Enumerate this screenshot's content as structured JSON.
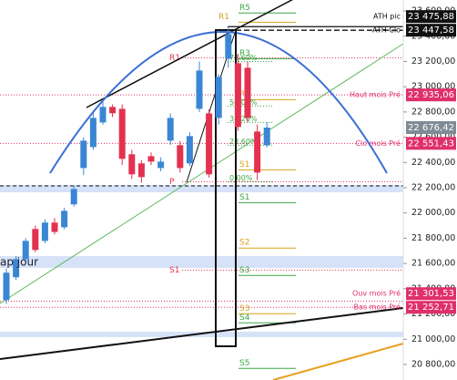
{
  "chart_data": {
    "type": "candlestick",
    "categories": [
      null,
      null,
      null,
      null,
      null,
      null,
      null,
      null,
      null,
      null,
      null,
      null,
      null,
      null,
      null,
      null,
      null,
      null,
      null,
      null,
      null,
      null,
      null,
      null,
      null,
      null,
      null,
      null
    ],
    "open": [
      21310,
      21491,
      21635,
      21873,
      21779,
      21924,
      21887,
      22068,
      22356,
      22522,
      22717,
      22840,
      22825,
      22465,
      22393,
      22450,
      22356,
      22573,
      22537,
      22393,
      22825,
      22789,
      22753,
      23222,
      23186,
      23150,
      22645,
      22537
    ],
    "high": [
      21560,
      21660,
      21800,
      21900,
      21950,
      21960,
      22040,
      22220,
      22600,
      22790,
      22880,
      22860,
      22860,
      22500,
      22420,
      22480,
      22440,
      22790,
      22570,
      22640,
      23200,
      22820,
      23100,
      23475.88,
      23260,
      23200,
      22700,
      22720
    ],
    "low": [
      21280,
      21470,
      21610,
      21690,
      21760,
      21830,
      21870,
      22050,
      22300,
      22500,
      22700,
      22760,
      22380,
      22270,
      22240,
      22380,
      22330,
      22540,
      22320,
      22370,
      22800,
      22280,
      22700,
      23150,
      22650,
      22720,
      22260,
      22520
    ],
    "close": [
      21527,
      21635,
      21779,
      21707,
      21924,
      21850,
      22017,
      22190,
      22573,
      22753,
      22840,
      22790,
      22429,
      22306,
      22284,
      22407,
      22407,
      22753,
      22356,
      22609,
      23128,
      22306,
      23078,
      23417,
      22681,
      22753,
      22320,
      22676.42
    ],
    "up_color": "#3a86d4",
    "down_color": "#e3324f",
    "last_price_label": "22 676,42",
    "last_price_color": "#7f8c97",
    "ylim": [
      20677,
      23687
    ],
    "yticks": [
      {
        "value": 20800,
        "label": "20 800,00"
      },
      {
        "value": 21000,
        "label": "21 000,00"
      },
      {
        "value": 21200,
        "label": "21 200,00"
      },
      {
        "value": 21400,
        "label": "21 400,00"
      },
      {
        "value": 21600,
        "label": "21 600,00"
      },
      {
        "value": 21800,
        "label": "21 800,00"
      },
      {
        "value": 22000,
        "label": "22 000,00"
      },
      {
        "value": 22200,
        "label": "22 200,00"
      },
      {
        "value": 22400,
        "label": "22 400,00"
      },
      {
        "value": 22600,
        "label": "22 600,00"
      },
      {
        "value": 22800,
        "label": "22 800,00"
      },
      {
        "value": 23000,
        "label": "23 000,00"
      },
      {
        "value": 23200,
        "label": "23 200,00"
      },
      {
        "value": 23400,
        "label": "23 400,00"
      },
      {
        "value": 23600,
        "label": "23 600,00"
      }
    ],
    "grid": false,
    "levels": [
      {
        "name": "ATH pic",
        "value": 23475.88,
        "value_label": "23 475,88",
        "color": "#111111",
        "style": "solid"
      },
      {
        "name": "ATH Clo",
        "value": 23447.58,
        "value_label": "23 447,58",
        "color": "#111111",
        "style": "dashed"
      },
      {
        "name": "Haut mois Pré",
        "value": 22935.06,
        "value_label": "22 935,06",
        "color": "#e0306a",
        "style": "dotted"
      },
      {
        "name": "Clo mois Pré",
        "value": 22551.43,
        "value_label": "22 551,43",
        "color": "#e0306a",
        "style": "dotted"
      },
      {
        "name": "Ouv mois Pré",
        "value": 21301.53,
        "value_label": "21 301,53",
        "color": "#e0306a",
        "style": "dotted"
      },
      {
        "name": "Bas mois Pré",
        "value": 21252.71,
        "value_label": "21 252,71",
        "color": "#e0306a",
        "style": "dotted"
      }
    ],
    "pivots": [
      {
        "name": "R5",
        "value": 23620,
        "color": "#3aa845"
      },
      {
        "name": "R1",
        "value": 23547,
        "color": "#d9a21b"
      },
      {
        "name": "R3",
        "value": 23258,
        "color": "#3aa845"
      },
      {
        "name": "P",
        "value": 22934,
        "color": "#d9a21b"
      },
      {
        "name": "S1",
        "value": 22378,
        "color": "#d9a21b"
      },
      {
        "name": "S1",
        "value": 22118,
        "color": "#3aa845"
      },
      {
        "name": "S2",
        "value": 21758,
        "color": "#d9a21b"
      },
      {
        "name": "S3",
        "value": 21541,
        "color": "#3aa845"
      },
      {
        "name": "S3",
        "value": 21238,
        "color": "#d9a21b"
      },
      {
        "name": "S4",
        "value": 21166,
        "color": "#3aa845"
      },
      {
        "name": "S5",
        "value": 20805,
        "color": "#3aa845"
      }
    ],
    "monthly_pivots": [
      {
        "name": "R1",
        "value": 23229,
        "color": "#e3324f"
      },
      {
        "name": "P",
        "value": 22248,
        "color": "#e3324f"
      },
      {
        "name": "S1",
        "value": 21548,
        "color": "#e3324f"
      }
    ],
    "fibonacci": [
      {
        "name": "78.60%",
        "value": 23200
      },
      {
        "name": "50.00%",
        "value": 22847
      },
      {
        "name": "38.20%",
        "value": 22717
      },
      {
        "name": "23.60%",
        "value": 22537
      },
      {
        "name": "0.00%",
        "value": 22248
      }
    ],
    "fib_color": "#3aa845",
    "annotation": "ap jour"
  }
}
